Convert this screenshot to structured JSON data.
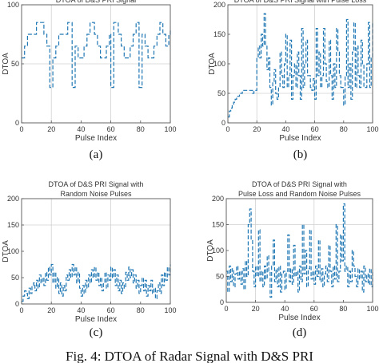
{
  "caption": "Fig. 4: DTOA of Radar Signal with D&S PRI",
  "colors": {
    "series": "#1f77b4",
    "frame": "#555555",
    "grid": "#d0d0d0",
    "text": "#333333"
  },
  "chart_data": [
    {
      "type": "line",
      "panel_label": "(a)",
      "title": [
        "DTOA of D&S PRI Signal"
      ],
      "xlabel": "Pulse Index",
      "ylabel": "DTOA",
      "xlim": [
        0,
        100
      ],
      "ylim": [
        0,
        100
      ],
      "xticks": [
        0,
        20,
        40,
        60,
        80,
        100
      ],
      "yticks": [
        0,
        50,
        100
      ],
      "grid_x": [
        20,
        60
      ],
      "grid_y": [
        50
      ],
      "series": [
        {
          "x": [
            0,
            1,
            2,
            3,
            4,
            5,
            6,
            7,
            8,
            9,
            10,
            11,
            12,
            13,
            14,
            15,
            16,
            17,
            18,
            19,
            20,
            21,
            22,
            23,
            24,
            25,
            26,
            27,
            28,
            29,
            30,
            31,
            32,
            33,
            34,
            35,
            36,
            37,
            38,
            39,
            40,
            41,
            42,
            43,
            44,
            45,
            46,
            47,
            48,
            49,
            50,
            51,
            52,
            53,
            54,
            55,
            56,
            57,
            58,
            59,
            60,
            61,
            62,
            63,
            64,
            65,
            66,
            67,
            68,
            69,
            70,
            71,
            72,
            73,
            74,
            75,
            76,
            77,
            78,
            79,
            80,
            81,
            82,
            83,
            84,
            85,
            86,
            87,
            88,
            89,
            90,
            91,
            92,
            93,
            94,
            95,
            96,
            97,
            98,
            99,
            100
          ],
          "y": [
            55,
            55,
            65,
            65,
            75,
            75,
            75,
            75,
            75,
            75,
            85,
            85,
            85,
            85,
            85,
            75,
            75,
            65,
            65,
            30,
            30,
            55,
            55,
            65,
            65,
            75,
            75,
            75,
            75,
            75,
            75,
            85,
            85,
            85,
            30,
            30,
            65,
            65,
            55,
            55,
            55,
            55,
            65,
            65,
            75,
            75,
            85,
            85,
            85,
            75,
            75,
            65,
            65,
            55,
            55,
            55,
            55,
            65,
            65,
            75,
            30,
            30,
            85,
            85,
            85,
            75,
            75,
            65,
            65,
            55,
            55,
            55,
            55,
            65,
            65,
            75,
            75,
            85,
            85,
            30,
            30,
            75,
            75,
            65,
            65,
            55,
            55,
            55,
            55,
            65,
            65,
            75,
            75,
            85,
            85,
            75,
            75,
            65,
            65,
            75,
            80
          ]
        }
      ]
    },
    {
      "type": "line",
      "panel_label": "(b)",
      "title": [
        "DTOA of D&S PRI Signal with Pulse Loss"
      ],
      "xlabel": "Pulse Index",
      "ylabel": "DTOA",
      "xlim": [
        0,
        100
      ],
      "ylim": [
        0,
        200
      ],
      "xticks": [
        0,
        20,
        40,
        60,
        80,
        100
      ],
      "yticks": [
        0,
        50,
        100,
        150,
        200
      ],
      "grid_x": [
        20,
        60
      ],
      "grid_y": [
        50
      ],
      "series": [
        {
          "x": [
            0,
            1,
            2,
            3,
            4,
            5,
            6,
            7,
            8,
            9,
            10,
            11,
            12,
            13,
            14,
            15,
            16,
            17,
            18,
            19,
            20,
            21,
            22,
            23,
            24,
            25,
            26,
            27,
            28,
            29,
            30,
            31,
            32,
            33,
            34,
            35,
            36,
            37,
            38,
            39,
            40,
            41,
            42,
            43,
            44,
            45,
            46,
            47,
            48,
            49,
            50,
            51,
            52,
            53,
            54,
            55,
            56,
            57,
            58,
            59,
            60,
            61,
            62,
            63,
            64,
            65,
            66,
            67,
            68,
            69,
            70,
            71,
            72,
            73,
            74,
            75,
            76,
            77,
            78,
            79,
            80,
            81,
            82,
            83,
            84,
            85,
            86,
            87,
            88,
            89,
            90,
            91,
            92,
            93,
            94,
            95,
            96,
            97,
            98,
            99,
            100
          ],
          "y": [
            10,
            20,
            25,
            30,
            35,
            40,
            45,
            45,
            50,
            50,
            55,
            55,
            55,
            55,
            55,
            55,
            55,
            50,
            55,
            55,
            110,
            130,
            110,
            150,
            130,
            185,
            130,
            90,
            110,
            60,
            30,
            70,
            90,
            50,
            40,
            60,
            120,
            80,
            60,
            100,
            150,
            60,
            80,
            140,
            40,
            80,
            100,
            60,
            120,
            80,
            40,
            160,
            60,
            100,
            140,
            80,
            80,
            60,
            55,
            75,
            40,
            160,
            80,
            120,
            60,
            80,
            160,
            100,
            70,
            60,
            140,
            80,
            40,
            100,
            60,
            160,
            120,
            80,
            60,
            60,
            30,
            80,
            175,
            60,
            100,
            40,
            120,
            170,
            60,
            130,
            80,
            60,
            140,
            100,
            60,
            60,
            100,
            170,
            60,
            110,
            170
          ]
        }
      ]
    },
    {
      "type": "line",
      "panel_label": "(c)",
      "title": [
        "DTOA of D&S PRI Signal with",
        "Random Noise Pulses"
      ],
      "xlabel": "Pulse Index",
      "ylabel": "DTOA",
      "xlim": [
        0,
        100
      ],
      "ylim": [
        0,
        200
      ],
      "xticks": [
        0,
        20,
        40,
        60,
        80,
        100
      ],
      "yticks": [
        0,
        50,
        100,
        150,
        200
      ],
      "grid_x": [
        20,
        60
      ],
      "grid_y": [
        150
      ],
      "series": [
        {
          "x": [
            0,
            1,
            2,
            3,
            4,
            5,
            6,
            7,
            8,
            9,
            10,
            11,
            12,
            13,
            14,
            15,
            16,
            17,
            18,
            19,
            20,
            21,
            22,
            23,
            24,
            25,
            26,
            27,
            28,
            29,
            30,
            31,
            32,
            33,
            34,
            35,
            36,
            37,
            38,
            39,
            40,
            41,
            42,
            43,
            44,
            45,
            46,
            47,
            48,
            49,
            50,
            51,
            52,
            53,
            54,
            55,
            56,
            57,
            58,
            59,
            60,
            61,
            62,
            63,
            64,
            65,
            66,
            67,
            68,
            69,
            70,
            71,
            72,
            73,
            74,
            75,
            76,
            77,
            78,
            79,
            80,
            81,
            82,
            83,
            84,
            85,
            86,
            87,
            88,
            89,
            90,
            91,
            92,
            93,
            94,
            95,
            96,
            97,
            98,
            99,
            100
          ],
          "y": [
            5,
            15,
            25,
            20,
            10,
            30,
            20,
            35,
            40,
            25,
            45,
            30,
            55,
            40,
            50,
            35,
            60,
            45,
            70,
            55,
            75,
            40,
            60,
            30,
            50,
            20,
            40,
            15,
            35,
            25,
            55,
            45,
            65,
            50,
            75,
            55,
            70,
            40,
            60,
            30,
            15,
            35,
            20,
            45,
            30,
            55,
            40,
            65,
            50,
            70,
            45,
            60,
            35,
            50,
            25,
            40,
            60,
            30,
            55,
            45,
            70,
            50,
            65,
            35,
            55,
            25,
            45,
            20,
            40,
            30,
            60,
            45,
            70,
            50,
            65,
            40,
            55,
            30,
            45,
            20,
            35,
            50,
            25,
            45,
            15,
            35,
            25,
            45,
            20,
            30,
            10,
            25,
            40,
            20,
            55,
            35,
            60,
            45,
            70,
            55,
            75
          ]
        }
      ]
    },
    {
      "type": "line",
      "panel_label": "(d)",
      "title": [
        "DTOA of D&S PRI Signal with",
        "Pulse Loss and Random Noise Pulses"
      ],
      "xlabel": "Pulse Index",
      "ylabel": "DTOA",
      "xlim": [
        0,
        100
      ],
      "ylim": [
        0,
        200
      ],
      "xticks": [
        0,
        20,
        40,
        60,
        80,
        100
      ],
      "yticks": [
        0,
        50,
        100,
        150,
        200
      ],
      "grid_x": [
        20,
        60
      ],
      "grid_y": [
        150
      ],
      "series": [
        {
          "x": [
            0,
            1,
            2,
            3,
            4,
            5,
            6,
            7,
            8,
            9,
            10,
            11,
            12,
            13,
            14,
            15,
            16,
            17,
            18,
            19,
            20,
            21,
            22,
            23,
            24,
            25,
            26,
            27,
            28,
            29,
            30,
            31,
            32,
            33,
            34,
            35,
            36,
            37,
            38,
            39,
            40,
            41,
            42,
            43,
            44,
            45,
            46,
            47,
            48,
            49,
            50,
            51,
            52,
            53,
            54,
            55,
            56,
            57,
            58,
            59,
            60,
            61,
            62,
            63,
            64,
            65,
            66,
            67,
            68,
            69,
            70,
            71,
            72,
            73,
            74,
            75,
            76,
            77,
            78,
            79,
            80,
            81,
            82,
            83,
            84,
            85,
            86,
            87,
            88,
            89,
            90,
            91,
            92,
            93,
            94,
            95,
            96,
            97,
            98,
            99,
            100
          ],
          "y": [
            60,
            20,
            70,
            40,
            65,
            30,
            55,
            70,
            45,
            60,
            35,
            65,
            25,
            80,
            50,
            150,
            180,
            120,
            60,
            30,
            70,
            50,
            140,
            40,
            60,
            30,
            70,
            45,
            90,
            60,
            10,
            70,
            120,
            40,
            65,
            30,
            70,
            20,
            55,
            60,
            25,
            60,
            130,
            40,
            65,
            35,
            110,
            50,
            60,
            20,
            70,
            40,
            150,
            55,
            100,
            30,
            65,
            140,
            45,
            60,
            35,
            70,
            50,
            120,
            40,
            65,
            30,
            55,
            70,
            40,
            110,
            60,
            30,
            70,
            45,
            150,
            40,
            60,
            130,
            80,
            190,
            60,
            70,
            30,
            60,
            40,
            100,
            70,
            50,
            30,
            65,
            45,
            60,
            20,
            70,
            40,
            55,
            35,
            65,
            30,
            60
          ]
        }
      ]
    }
  ]
}
